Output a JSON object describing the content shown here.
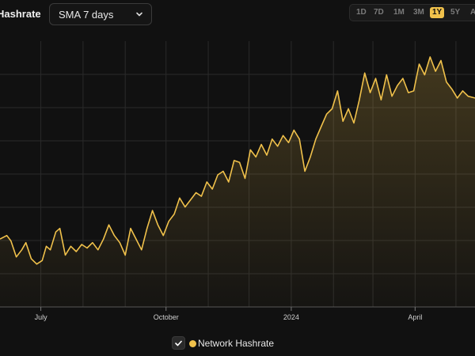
{
  "header": {
    "title": "Hashrate",
    "sma_select": "SMA 7 days",
    "ranges": [
      "1D",
      "7D",
      "1M",
      "3M",
      "1Y",
      "5Y",
      "A"
    ],
    "active_range": "1Y"
  },
  "legend": {
    "label": "Network Hashrate",
    "checked": true,
    "check_glyph": "✓"
  },
  "colors": {
    "line": "#f0c14b",
    "background": "#111111",
    "grid": "#2a2a2a"
  },
  "chart_data": {
    "type": "area",
    "title": "",
    "xlabel": "",
    "ylabel": "",
    "x_range": [
      "2023-06-01",
      "2024-05-15"
    ],
    "ylim": [
      0,
      7
    ],
    "grid": true,
    "x_tick_labels": [
      {
        "date": "2023-07-01",
        "label": "July"
      },
      {
        "date": "2023-10-01",
        "label": "October"
      },
      {
        "date": "2024-01-01",
        "label": "2024"
      },
      {
        "date": "2024-04-01",
        "label": "April"
      }
    ],
    "series": [
      {
        "name": "Network Hashrate",
        "points": [
          [
            "2023-06-01",
            1.9
          ],
          [
            "2023-06-06",
            2.0
          ],
          [
            "2023-06-09",
            1.85
          ],
          [
            "2023-06-13",
            1.4
          ],
          [
            "2023-06-17",
            1.6
          ],
          [
            "2023-06-20",
            1.8
          ],
          [
            "2023-06-24",
            1.35
          ],
          [
            "2023-06-28",
            1.2
          ],
          [
            "2023-07-02",
            1.3
          ],
          [
            "2023-07-05",
            1.7
          ],
          [
            "2023-07-08",
            1.6
          ],
          [
            "2023-07-12",
            2.1
          ],
          [
            "2023-07-15",
            2.2
          ],
          [
            "2023-07-19",
            1.45
          ],
          [
            "2023-07-23",
            1.7
          ],
          [
            "2023-07-27",
            1.55
          ],
          [
            "2023-07-31",
            1.75
          ],
          [
            "2023-08-04",
            1.65
          ],
          [
            "2023-08-08",
            1.8
          ],
          [
            "2023-08-12",
            1.6
          ],
          [
            "2023-08-16",
            1.9
          ],
          [
            "2023-08-20",
            2.3
          ],
          [
            "2023-08-24",
            2.0
          ],
          [
            "2023-08-28",
            1.8
          ],
          [
            "2023-09-01",
            1.45
          ],
          [
            "2023-09-05",
            2.2
          ],
          [
            "2023-09-09",
            1.9
          ],
          [
            "2023-09-13",
            1.6
          ],
          [
            "2023-09-17",
            2.2
          ],
          [
            "2023-09-21",
            2.7
          ],
          [
            "2023-09-25",
            2.3
          ],
          [
            "2023-09-29",
            2.0
          ],
          [
            "2023-10-03",
            2.4
          ],
          [
            "2023-10-07",
            2.6
          ],
          [
            "2023-10-11",
            3.05
          ],
          [
            "2023-10-15",
            2.8
          ],
          [
            "2023-10-19",
            3.0
          ],
          [
            "2023-10-23",
            3.2
          ],
          [
            "2023-10-27",
            3.1
          ],
          [
            "2023-10-31",
            3.5
          ],
          [
            "2023-11-04",
            3.3
          ],
          [
            "2023-11-08",
            3.7
          ],
          [
            "2023-11-12",
            3.8
          ],
          [
            "2023-11-16",
            3.5
          ],
          [
            "2023-11-20",
            4.1
          ],
          [
            "2023-11-24",
            4.05
          ],
          [
            "2023-11-28",
            3.6
          ],
          [
            "2023-12-02",
            4.4
          ],
          [
            "2023-12-06",
            4.2
          ],
          [
            "2023-12-10",
            4.55
          ],
          [
            "2023-12-14",
            4.25
          ],
          [
            "2023-12-18",
            4.7
          ],
          [
            "2023-12-22",
            4.5
          ],
          [
            "2023-12-26",
            4.8
          ],
          [
            "2023-12-30",
            4.6
          ],
          [
            "2024-01-03",
            4.95
          ],
          [
            "2024-01-07",
            4.7
          ],
          [
            "2024-01-11",
            3.8
          ],
          [
            "2024-01-15",
            4.2
          ],
          [
            "2024-01-19",
            4.7
          ],
          [
            "2024-01-23",
            5.05
          ],
          [
            "2024-01-27",
            5.4
          ],
          [
            "2024-01-31",
            5.55
          ],
          [
            "2024-02-04",
            6.05
          ],
          [
            "2024-02-08",
            5.2
          ],
          [
            "2024-02-12",
            5.55
          ],
          [
            "2024-02-16",
            5.15
          ],
          [
            "2024-02-20",
            5.8
          ],
          [
            "2024-02-24",
            6.55
          ],
          [
            "2024-02-28",
            6.0
          ],
          [
            "2024-03-03",
            6.4
          ],
          [
            "2024-03-07",
            5.8
          ],
          [
            "2024-03-11",
            6.5
          ],
          [
            "2024-03-15",
            5.9
          ],
          [
            "2024-03-19",
            6.2
          ],
          [
            "2024-03-23",
            6.4
          ],
          [
            "2024-03-27",
            6.0
          ],
          [
            "2024-03-31",
            6.05
          ],
          [
            "2024-04-04",
            6.8
          ],
          [
            "2024-04-08",
            6.5
          ],
          [
            "2024-04-12",
            7.0
          ],
          [
            "2024-04-16",
            6.6
          ],
          [
            "2024-04-20",
            6.9
          ],
          [
            "2024-04-24",
            6.3
          ],
          [
            "2024-04-28",
            6.1
          ],
          [
            "2024-05-02",
            5.85
          ],
          [
            "2024-05-06",
            6.05
          ],
          [
            "2024-05-10",
            5.9
          ],
          [
            "2024-05-15",
            5.85
          ]
        ]
      }
    ]
  }
}
